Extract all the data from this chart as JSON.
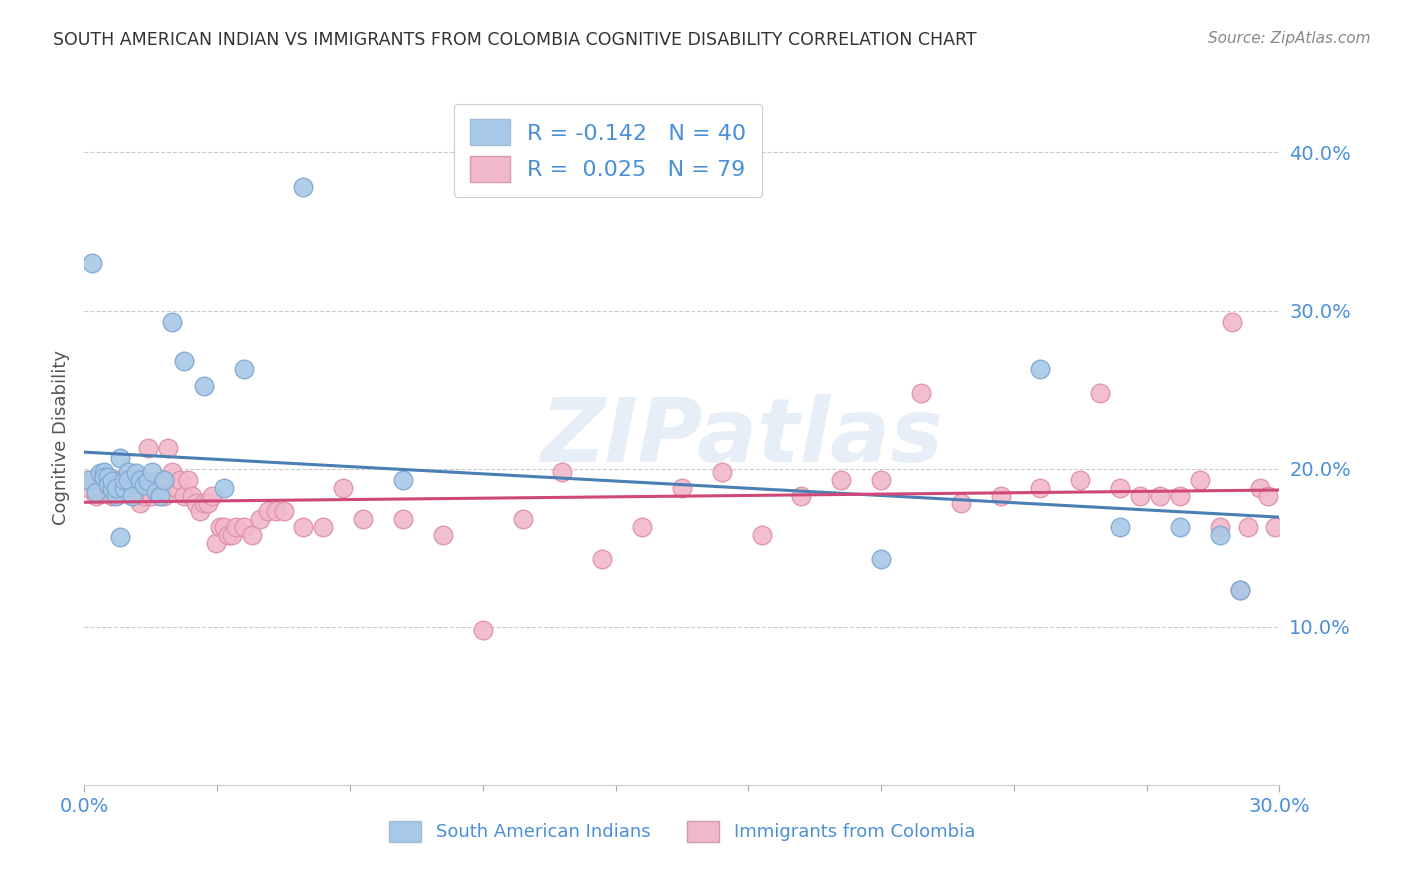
{
  "title": "SOUTH AMERICAN INDIAN VS IMMIGRANTS FROM COLOMBIA COGNITIVE DISABILITY CORRELATION CHART",
  "source": "Source: ZipAtlas.com",
  "ylabel": "Cognitive Disability",
  "xlim": [
    0.0,
    0.3
  ],
  "ylim": [
    0.0,
    0.44
  ],
  "yticks": [
    0.1,
    0.2,
    0.3,
    0.4
  ],
  "ytick_labels": [
    "10.0%",
    "20.0%",
    "30.0%",
    "40.0%"
  ],
  "xtick_labels": [
    "0.0%",
    "30.0%"
  ],
  "blue_color": "#a8c8e8",
  "pink_color": "#f0b8c8",
  "blue_line_color": "#4a7fb5",
  "pink_line_color": "#d04878",
  "watermark": "ZIPatlas",
  "blue_scatter_x": [
    0.001,
    0.002,
    0.003,
    0.004,
    0.005,
    0.005,
    0.006,
    0.006,
    0.007,
    0.007,
    0.008,
    0.008,
    0.009,
    0.009,
    0.01,
    0.01,
    0.011,
    0.011,
    0.012,
    0.013,
    0.014,
    0.015,
    0.016,
    0.017,
    0.018,
    0.019,
    0.02,
    0.022,
    0.025,
    0.03,
    0.035,
    0.04,
    0.055,
    0.08,
    0.2,
    0.24,
    0.26,
    0.275,
    0.285,
    0.29
  ],
  "blue_scatter_y": [
    0.193,
    0.33,
    0.185,
    0.197,
    0.198,
    0.195,
    0.195,
    0.19,
    0.187,
    0.192,
    0.183,
    0.188,
    0.157,
    0.207,
    0.188,
    0.193,
    0.198,
    0.193,
    0.183,
    0.197,
    0.193,
    0.19,
    0.192,
    0.198,
    0.185,
    0.183,
    0.193,
    0.293,
    0.268,
    0.252,
    0.188,
    0.263,
    0.378,
    0.193,
    0.143,
    0.263,
    0.163,
    0.163,
    0.158,
    0.123
  ],
  "pink_scatter_x": [
    0.001,
    0.002,
    0.003,
    0.004,
    0.005,
    0.006,
    0.007,
    0.008,
    0.009,
    0.01,
    0.011,
    0.012,
    0.013,
    0.014,
    0.015,
    0.016,
    0.017,
    0.018,
    0.019,
    0.02,
    0.021,
    0.022,
    0.023,
    0.024,
    0.025,
    0.026,
    0.027,
    0.028,
    0.029,
    0.03,
    0.031,
    0.032,
    0.033,
    0.034,
    0.035,
    0.036,
    0.037,
    0.038,
    0.04,
    0.042,
    0.044,
    0.046,
    0.048,
    0.05,
    0.055,
    0.06,
    0.065,
    0.07,
    0.08,
    0.09,
    0.1,
    0.11,
    0.12,
    0.13,
    0.14,
    0.15,
    0.16,
    0.17,
    0.18,
    0.19,
    0.2,
    0.21,
    0.22,
    0.23,
    0.24,
    0.25,
    0.255,
    0.26,
    0.265,
    0.27,
    0.275,
    0.28,
    0.285,
    0.288,
    0.29,
    0.292,
    0.295,
    0.297,
    0.299
  ],
  "pink_scatter_y": [
    0.188,
    0.193,
    0.183,
    0.188,
    0.193,
    0.188,
    0.183,
    0.193,
    0.193,
    0.193,
    0.188,
    0.188,
    0.193,
    0.178,
    0.183,
    0.213,
    0.183,
    0.188,
    0.193,
    0.183,
    0.213,
    0.198,
    0.188,
    0.193,
    0.183,
    0.193,
    0.183,
    0.178,
    0.173,
    0.178,
    0.178,
    0.183,
    0.153,
    0.163,
    0.163,
    0.158,
    0.158,
    0.163,
    0.163,
    0.158,
    0.168,
    0.173,
    0.173,
    0.173,
    0.163,
    0.163,
    0.188,
    0.168,
    0.168,
    0.158,
    0.098,
    0.168,
    0.198,
    0.143,
    0.163,
    0.188,
    0.198,
    0.158,
    0.183,
    0.193,
    0.193,
    0.248,
    0.178,
    0.183,
    0.188,
    0.193,
    0.248,
    0.188,
    0.183,
    0.183,
    0.183,
    0.193,
    0.163,
    0.293,
    0.123,
    0.163,
    0.188,
    0.183,
    0.163
  ]
}
